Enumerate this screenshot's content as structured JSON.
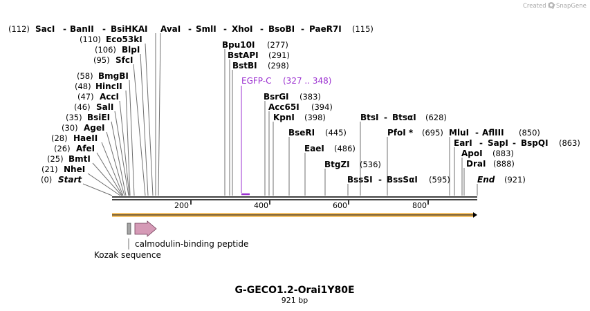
{
  "credit": "Created by",
  "brand": "SnapGene",
  "title": "G-GECO1.2-Orai1Y80E",
  "length_label": "921 bp",
  "sequence_length": 921,
  "ticks": [
    "200",
    "400",
    "600",
    "800"
  ],
  "tick_values": [
    200,
    400,
    600,
    800
  ],
  "colors": {
    "primer": "#9b30d0",
    "feature": "#d59ab6",
    "orf": "#f2b64e",
    "kozak": "#a5a5a5"
  },
  "site_groups": [
    {
      "pos": "(112)",
      "names": [
        "SacI",
        "BanII",
        "BsiHKAI",
        "AvaI",
        "SmlI",
        "XhoI",
        "BsoBI",
        "PaeR7I"
      ],
      "pos2": "(115)"
    },
    {
      "pos": "(110)",
      "names": [
        "Eco53kI"
      ]
    },
    {
      "pos": "(106)",
      "names": [
        "BlpI"
      ]
    },
    {
      "pos": "(95)",
      "names": [
        "SfcI"
      ]
    },
    {
      "pos": "(58)",
      "names": [
        "BmgBI"
      ]
    },
    {
      "pos": "(48)",
      "names": [
        "HincII"
      ]
    },
    {
      "pos": "(47)",
      "names": [
        "AccI"
      ]
    },
    {
      "pos": "(46)",
      "names": [
        "SalI"
      ]
    },
    {
      "pos": "(35)",
      "names": [
        "BsiEI"
      ]
    },
    {
      "pos": "(30)",
      "names": [
        "AgeI"
      ]
    },
    {
      "pos": "(28)",
      "names": [
        "HaeII"
      ]
    },
    {
      "pos": "(26)",
      "names": [
        "AfeI"
      ]
    },
    {
      "pos": "(25)",
      "names": [
        "BmtI"
      ]
    },
    {
      "pos": "(21)",
      "names": [
        "NheI"
      ]
    },
    {
      "pos": "(0)",
      "names": [
        "Start"
      ]
    },
    {
      "names": [
        "Bpu10I"
      ],
      "pos": "(277)"
    },
    {
      "names": [
        "BstAPI"
      ],
      "pos": "(291)"
    },
    {
      "names": [
        "BstBI"
      ],
      "pos": "(298)"
    },
    {
      "names": [
        "BsrGI"
      ],
      "pos": "(383)"
    },
    {
      "names": [
        "Acc65I"
      ],
      "pos": "(394)"
    },
    {
      "names": [
        "KpnI"
      ],
      "pos": "(398)"
    },
    {
      "names": [
        "BseRI"
      ],
      "pos": "(445)"
    },
    {
      "names": [
        "EaeI"
      ],
      "pos": "(486)"
    },
    {
      "names": [
        "BtgZI"
      ],
      "pos": "(536)"
    },
    {
      "names": [
        "BssSI",
        "BssSαI"
      ],
      "pos": "(595)"
    },
    {
      "names": [
        "BtsI",
        "BtsαI"
      ],
      "pos": "(628)"
    },
    {
      "names": [
        "PfoI *"
      ],
      "pos": "(695)"
    },
    {
      "names": [
        "MluI",
        "AflIII"
      ],
      "pos": "(850)"
    },
    {
      "names": [
        "EarI",
        "SapI",
        "BspQI"
      ],
      "pos": "(863)"
    },
    {
      "names": [
        "ApoI"
      ],
      "pos": "(883)"
    },
    {
      "names": [
        "DraI"
      ],
      "pos": "(888)"
    },
    {
      "names": [
        "End"
      ],
      "pos": "(921)"
    }
  ],
  "primer": {
    "name": "EGFP-C",
    "range": "(327 .. 348)"
  },
  "features": [
    {
      "name": "calmodulin-binding peptide",
      "type": "arrow"
    },
    {
      "name": "Kozak sequence",
      "type": "box"
    }
  ]
}
